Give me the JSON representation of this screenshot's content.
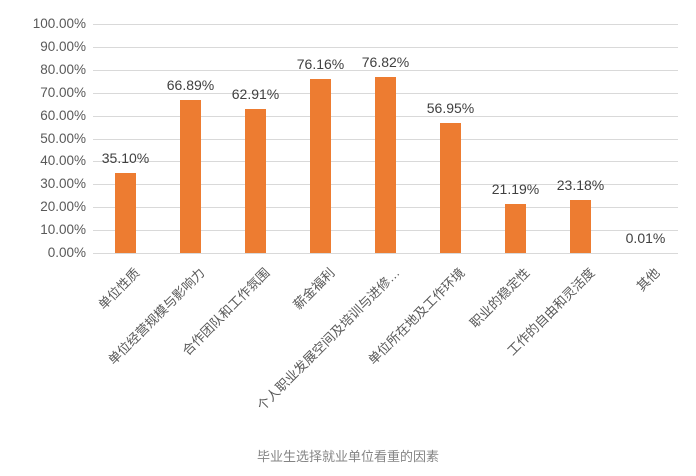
{
  "chart_data": {
    "type": "bar",
    "title": "毕业生选择就业单位看重的因素",
    "categories": [
      "单位性质",
      "单位经营规模与影响力",
      "合作团队和工作氛围",
      "薪金福利",
      "个人职业发展空间及培训与进修…",
      "单位所在地及工作环境",
      "职业的稳定性",
      "工作的自由和灵活度",
      "其他"
    ],
    "values": [
      35.1,
      66.89,
      62.91,
      76.16,
      76.82,
      56.95,
      21.19,
      23.18,
      0.01
    ],
    "value_labels": [
      "35.10%",
      "66.89%",
      "62.91%",
      "76.16%",
      "76.82%",
      "56.95%",
      "21.19%",
      "23.18%",
      "0.01%"
    ],
    "xlabel": "",
    "ylabel": "",
    "ylim": [
      0,
      100
    ],
    "ytick_step": 10,
    "ytick_labels": [
      "0.00%",
      "10.00%",
      "20.00%",
      "30.00%",
      "40.00%",
      "50.00%",
      "60.00%",
      "70.00%",
      "80.00%",
      "90.00%",
      "100.00%"
    ],
    "grid": true,
    "legend_position": "none",
    "colors": {
      "bar": "#ED7C31",
      "gridline": "#D9D9D9",
      "axis_text": "#595959",
      "value_text": "#404040",
      "title_text": "#848484"
    }
  }
}
